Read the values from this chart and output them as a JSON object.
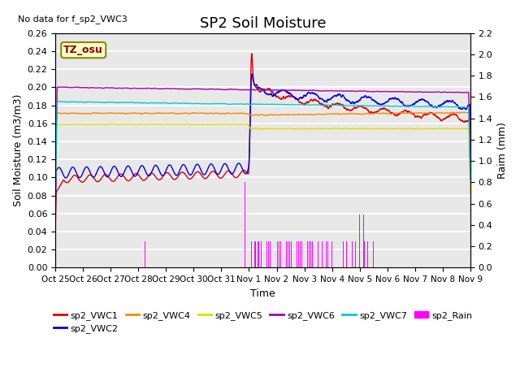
{
  "title": "SP2 Soil Moisture",
  "no_data_text": "No data for f_sp2_VWC3",
  "tz_label": "TZ_osu",
  "ylabel_left": "Soil Moisture (m3/m3)",
  "ylabel_right": "Raim (mm)",
  "xlabel": "Time",
  "ylim_left": [
    0.0,
    0.26
  ],
  "ylim_right": [
    0.0,
    2.2
  ],
  "yticks_left": [
    0.0,
    0.02,
    0.04,
    0.06,
    0.08,
    0.1,
    0.12,
    0.14,
    0.16,
    0.18,
    0.2,
    0.22,
    0.24,
    0.26
  ],
  "yticks_right": [
    0.0,
    0.2,
    0.4,
    0.6,
    0.8,
    1.0,
    1.2,
    1.4,
    1.6,
    1.8,
    2.0,
    2.2
  ],
  "colors": {
    "sp2_VWC1": "#dd0000",
    "sp2_VWC2": "#0000dd",
    "sp2_VWC4": "#ff8800",
    "sp2_VWC5": "#dddd00",
    "sp2_VWC6": "#aa00aa",
    "sp2_VWC7": "#00cccc",
    "sp2_Rain": "#ff00ff",
    "background": "#e8e8e8",
    "grid": "#ffffff"
  },
  "x_tick_labels": [
    "Oct 25",
    "Oct 26",
    "Oct 27",
    "Oct 28",
    "Oct 29",
    "Oct 30",
    "Oct 31",
    "Nov 1",
    "Nov 2",
    "Nov 3",
    "Nov 4",
    "Nov 5",
    "Nov 6",
    "Nov 7",
    "Nov 8",
    "Nov 9"
  ]
}
